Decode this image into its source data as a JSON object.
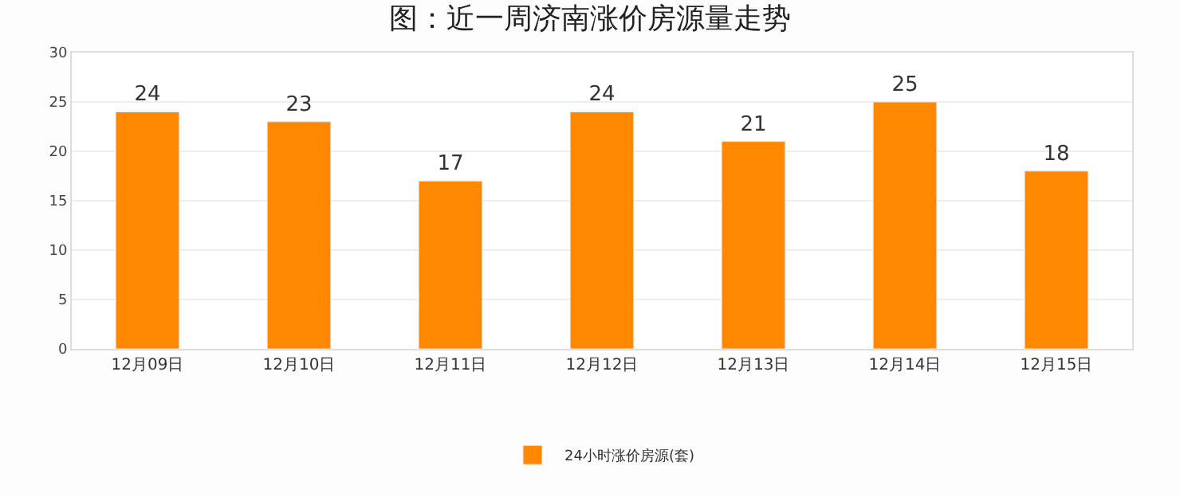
{
  "chart_data": {
    "type": "bar",
    "title": "图：近一周济南涨价房源量走势",
    "categories": [
      "12月09日",
      "12月10日",
      "12月11日",
      "12月12日",
      "12月13日",
      "12月14日",
      "12月15日"
    ],
    "series": [
      {
        "name": "24小时涨价房源(套)",
        "color": "#ff8800",
        "values": [
          24,
          23,
          17,
          24,
          21,
          25,
          18
        ]
      }
    ],
    "ylim": [
      0,
      30
    ],
    "yticks": [
      0,
      5,
      10,
      15,
      20,
      25,
      30
    ],
    "grid": "y",
    "legend": "bottom",
    "data_labels": true
  }
}
